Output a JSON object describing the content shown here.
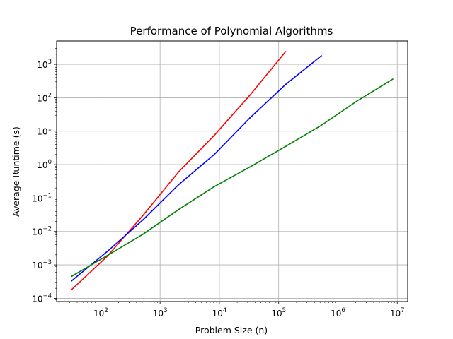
{
  "chart_data": {
    "type": "line",
    "title": "Performance of Polynomial Algorithms",
    "xlabel": "Problem Size (n)",
    "ylabel": "Average Runtime (s)",
    "xscale": "log",
    "yscale": "log",
    "xlim": [
      18,
      15000000
    ],
    "ylim": [
      8e-05,
      5000
    ],
    "grid": true,
    "x_ticks": [
      {
        "value": 100,
        "base": "10",
        "exp": "2"
      },
      {
        "value": 1000,
        "base": "10",
        "exp": "3"
      },
      {
        "value": 10000,
        "base": "10",
        "exp": "4"
      },
      {
        "value": 100000,
        "base": "10",
        "exp": "5"
      },
      {
        "value": 1000000,
        "base": "10",
        "exp": "6"
      },
      {
        "value": 10000000,
        "base": "10",
        "exp": "7"
      }
    ],
    "y_ticks": [
      {
        "value": 0.0001,
        "base": "10",
        "exp": "−4"
      },
      {
        "value": 0.001,
        "base": "10",
        "exp": "−3"
      },
      {
        "value": 0.01,
        "base": "10",
        "exp": "−2"
      },
      {
        "value": 0.1,
        "base": "10",
        "exp": "−1"
      },
      {
        "value": 1,
        "base": "10",
        "exp": "0"
      },
      {
        "value": 10,
        "base": "10",
        "exp": "1"
      },
      {
        "value": 100,
        "base": "10",
        "exp": "2"
      },
      {
        "value": 1000,
        "base": "10",
        "exp": "3"
      }
    ],
    "series": [
      {
        "color": "#ff0000",
        "x": [
          32,
          128,
          512,
          2048,
          8192,
          32768,
          131072
        ],
        "y": [
          0.00018,
          0.0018,
          0.03,
          0.6,
          7.5,
          120,
          2400
        ]
      },
      {
        "color": "#0000ff",
        "x": [
          32,
          128,
          512,
          2048,
          8192,
          32768,
          131072,
          524288
        ],
        "y": [
          0.00033,
          0.0025,
          0.022,
          0.25,
          2,
          25,
          250,
          1800
        ]
      },
      {
        "color": "#008000",
        "x": [
          32,
          128,
          512,
          2048,
          8192,
          32768,
          131072,
          524288,
          2097152,
          8388608
        ],
        "y": [
          0.00045,
          0.0019,
          0.0082,
          0.045,
          0.22,
          0.85,
          3.5,
          15,
          80,
          360
        ]
      }
    ]
  }
}
